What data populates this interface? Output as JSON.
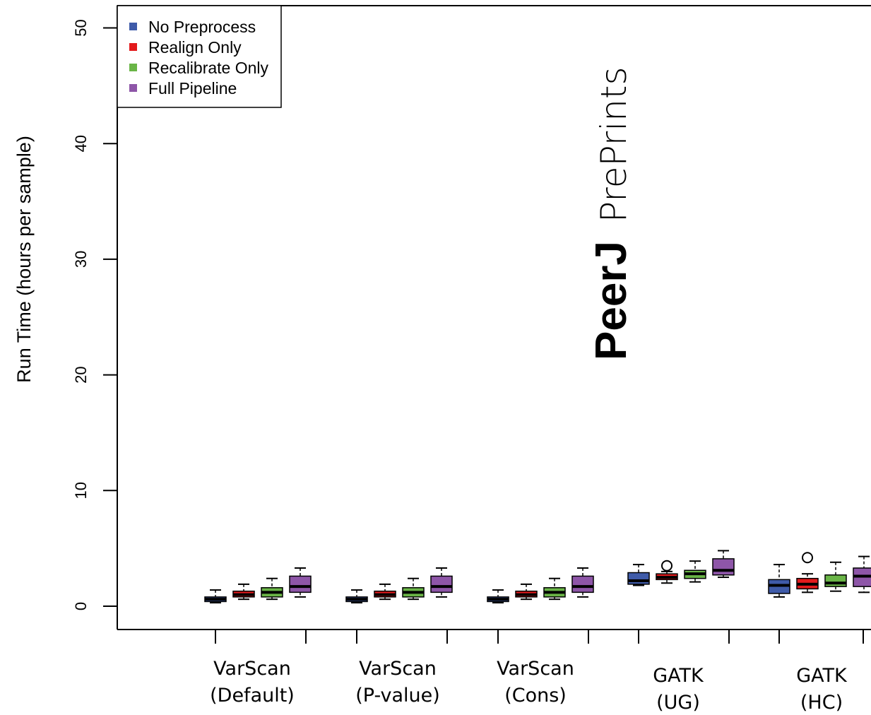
{
  "chart_data": {
    "type": "boxplot",
    "ylabel": "Run Time (hours per sample)",
    "xlabel": "",
    "ylim": [
      0,
      50
    ],
    "yticks": [
      0,
      10,
      20,
      30,
      40,
      50
    ],
    "grid": false,
    "legend_position": "top-left",
    "groups": [
      {
        "line1": "VarScan",
        "line2": "(Default)"
      },
      {
        "line1": "VarScan",
        "line2": "(P-value)"
      },
      {
        "line1": "VarScan",
        "line2": "(Cons)"
      },
      {
        "line1": "GATK",
        "line2": "(UG)"
      },
      {
        "line1": "GATK",
        "line2": "(HC)"
      }
    ],
    "series": [
      {
        "name": "No Preprocess",
        "color": "#3F5BA9",
        "boxes": [
          {
            "min": 0.3,
            "q1": 0.4,
            "median": 0.6,
            "q3": 0.8,
            "max": 1.4,
            "outliers": []
          },
          {
            "min": 0.3,
            "q1": 0.4,
            "median": 0.6,
            "q3": 0.8,
            "max": 1.4,
            "outliers": []
          },
          {
            "min": 0.3,
            "q1": 0.4,
            "median": 0.6,
            "q3": 0.8,
            "max": 1.4,
            "outliers": []
          },
          {
            "min": 1.8,
            "q1": 1.9,
            "median": 2.2,
            "q3": 2.9,
            "max": 3.6,
            "outliers": []
          },
          {
            "min": 0.8,
            "q1": 1.1,
            "median": 1.8,
            "q3": 2.3,
            "max": 3.6,
            "outliers": []
          }
        ]
      },
      {
        "name": "Realign Only",
        "color": "#E31A1C",
        "boxes": [
          {
            "min": 0.6,
            "q1": 0.8,
            "median": 1.0,
            "q3": 1.3,
            "max": 1.9,
            "outliers": []
          },
          {
            "min": 0.6,
            "q1": 0.8,
            "median": 1.0,
            "q3": 1.3,
            "max": 1.9,
            "outliers": []
          },
          {
            "min": 0.6,
            "q1": 0.8,
            "median": 1.0,
            "q3": 1.3,
            "max": 1.9,
            "outliers": []
          },
          {
            "min": 2.0,
            "q1": 2.3,
            "median": 2.5,
            "q3": 2.8,
            "max": 3.0,
            "outliers": [
              3.5
            ]
          },
          {
            "min": 1.2,
            "q1": 1.5,
            "median": 1.9,
            "q3": 2.4,
            "max": 2.8,
            "outliers": [
              4.2
            ]
          }
        ]
      },
      {
        "name": "Recalibrate Only",
        "color": "#6AB547",
        "boxes": [
          {
            "min": 0.6,
            "q1": 0.8,
            "median": 1.2,
            "q3": 1.6,
            "max": 2.4,
            "outliers": []
          },
          {
            "min": 0.6,
            "q1": 0.8,
            "median": 1.2,
            "q3": 1.6,
            "max": 2.4,
            "outliers": []
          },
          {
            "min": 0.6,
            "q1": 0.8,
            "median": 1.2,
            "q3": 1.6,
            "max": 2.4,
            "outliers": []
          },
          {
            "min": 2.1,
            "q1": 2.4,
            "median": 2.8,
            "q3": 3.1,
            "max": 3.9,
            "outliers": []
          },
          {
            "min": 1.3,
            "q1": 1.7,
            "median": 2.0,
            "q3": 2.7,
            "max": 3.8,
            "outliers": []
          }
        ]
      },
      {
        "name": "Full Pipeline",
        "color": "#8E56A8",
        "boxes": [
          {
            "min": 0.8,
            "q1": 1.2,
            "median": 1.7,
            "q3": 2.6,
            "max": 3.3,
            "outliers": []
          },
          {
            "min": 0.8,
            "q1": 1.2,
            "median": 1.7,
            "q3": 2.6,
            "max": 3.3,
            "outliers": []
          },
          {
            "min": 0.8,
            "q1": 1.2,
            "median": 1.7,
            "q3": 2.6,
            "max": 3.3,
            "outliers": []
          },
          {
            "min": 2.5,
            "q1": 2.7,
            "median": 3.1,
            "q3": 4.1,
            "max": 4.8,
            "outliers": []
          },
          {
            "min": 1.2,
            "q1": 1.7,
            "median": 2.6,
            "q3": 3.3,
            "max": 4.3,
            "outliers": []
          }
        ]
      }
    ]
  },
  "watermark": {
    "bold": "PeerJ",
    "light": "PrePrints",
    "bold_color": "#7FC9F0",
    "light_color": "#AAAAAA"
  }
}
